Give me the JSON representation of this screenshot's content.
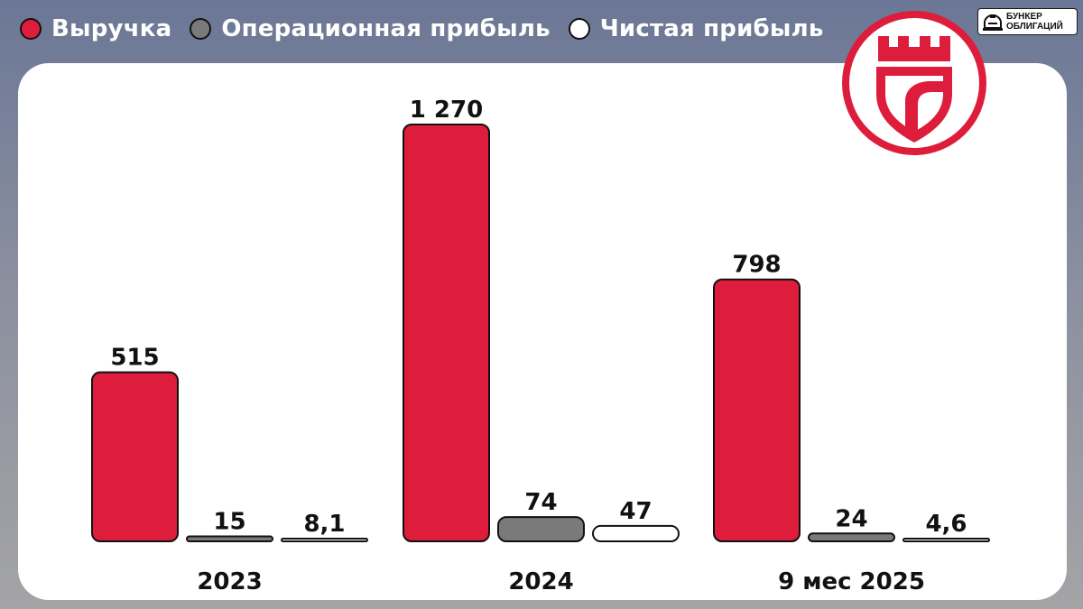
{
  "legend": [
    {
      "label": "Выручка",
      "color": "#dd1d3b"
    },
    {
      "label": "Операционная прибыль",
      "color": "#7a7a7a"
    },
    {
      "label": "Чистая прибыль",
      "color": "#ffffff"
    }
  ],
  "brand": {
    "line1": "БУНКЕР",
    "line2": "ОБЛИГАЦИЙ",
    "icon": "bunker-icon"
  },
  "emblem": {
    "icon": "castle-shield-logo",
    "color": "#dd1d3b"
  },
  "chart_data": {
    "type": "bar",
    "categories": [
      "2023",
      "2024",
      "9 мес 2025"
    ],
    "series": [
      {
        "name": "Выручка",
        "values": [
          515,
          1270,
          798
        ],
        "labels": [
          "515",
          "1 270",
          "798"
        ],
        "color": "#dd1d3b"
      },
      {
        "name": "Операционная прибыль",
        "values": [
          15,
          74,
          24
        ],
        "labels": [
          "15",
          "74",
          "24"
        ],
        "color": "#7a7a7a"
      },
      {
        "name": "Чистая прибыль",
        "values": [
          8.1,
          47,
          4.6
        ],
        "labels": [
          "8,1",
          "47",
          "4,6"
        ],
        "color": "#ffffff"
      }
    ],
    "ylim": [
      0,
      1270
    ],
    "title": "",
    "xlabel": "",
    "ylabel": "",
    "grid": false,
    "legend_position": "top-left"
  }
}
